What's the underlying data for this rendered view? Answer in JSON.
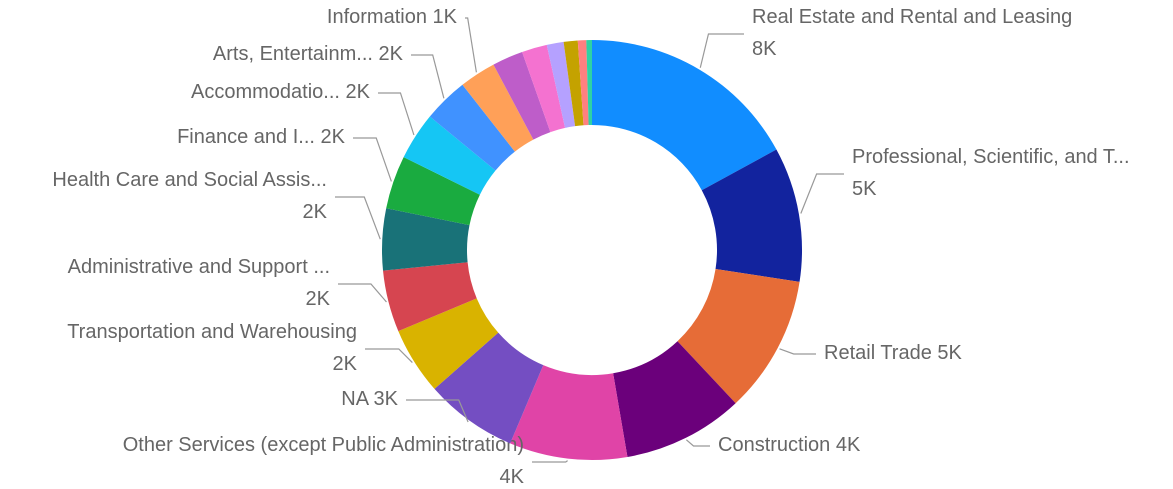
{
  "chart_data": {
    "type": "donut",
    "categories": [
      "Real Estate and Rental and Leasing",
      "Professional, Scientific, and T...",
      "Retail Trade",
      "Construction",
      "Other Services (except Public Administration)",
      "NA",
      "Transportation and Warehousing",
      "Administrative and Support ...",
      "Health Care and Social Assis...",
      "Finance and I...",
      "Accommodatio...",
      "Arts, Entertainm...",
      "Information",
      null,
      null,
      null,
      null,
      null,
      null
    ],
    "values": [
      7900,
      4800,
      4900,
      4300,
      4200,
      3300,
      2400,
      2200,
      2200,
      1900,
      1700,
      1600,
      1300,
      1100,
      900,
      600,
      500,
      300,
      200
    ],
    "value_labels": [
      "8K",
      "5K",
      "5K",
      "4K",
      "4K",
      "3K",
      "2K",
      "2K",
      "2K",
      "2K",
      "2K",
      "2K",
      "1K",
      null,
      null,
      null,
      null,
      null,
      null
    ],
    "colors": [
      "#118DFF",
      "#12239E",
      "#E66C37",
      "#6B007B",
      "#E044A7",
      "#744EC2",
      "#D9B300",
      "#D64550",
      "#197278",
      "#1AAB40",
      "#15C6F4",
      "#4092FF",
      "#FFA058",
      "#BE5DC9",
      "#F472D0",
      "#B5A1FF",
      "#C4A200",
      "#FF8080",
      "#2ED2A4"
    ]
  }
}
